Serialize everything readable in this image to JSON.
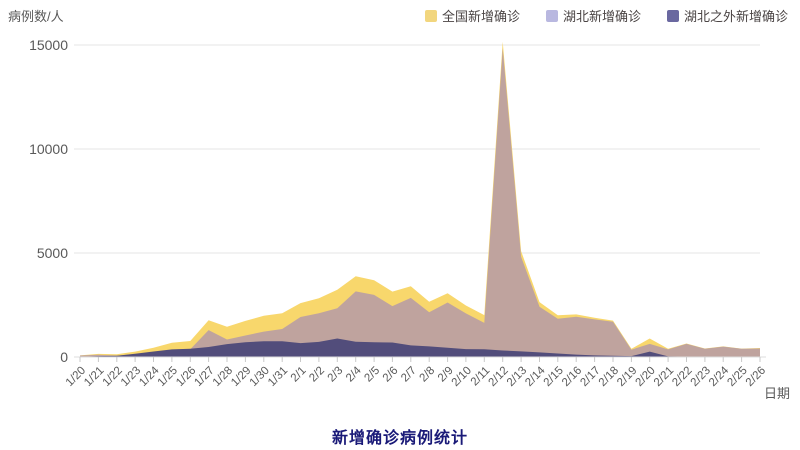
{
  "chart": {
    "title": "新增确诊病例统计",
    "y_axis_title": "病例数/人",
    "x_axis_title": "日期"
  },
  "legend": {
    "items": [
      {
        "label": "全国新增确诊",
        "color": "#f2d67e"
      },
      {
        "label": "湖北新增确诊",
        "color": "#b9b8e0"
      },
      {
        "label": "湖北之外新增确诊",
        "color": "#6a68a0"
      }
    ]
  },
  "chart_data": {
    "type": "area",
    "mode": "overlay",
    "title": "新增确诊病例统计",
    "xlabel": "日期",
    "ylabel": "病例数/人",
    "ylim": [
      0,
      15000
    ],
    "yticks": [
      0,
      5000,
      10000,
      15000
    ],
    "grid": true,
    "legend_position": "top-right",
    "x": [
      "1/20",
      "1/21",
      "1/22",
      "1/23",
      "1/24",
      "1/25",
      "1/26",
      "1/27",
      "1/28",
      "1/29",
      "1/30",
      "1/31",
      "2/1",
      "2/2",
      "2/3",
      "2/4",
      "2/5",
      "2/6",
      "2/7",
      "2/8",
      "2/9",
      "2/10",
      "2/11",
      "2/12",
      "2/13",
      "2/14",
      "2/15",
      "2/16",
      "2/17",
      "2/18",
      "2/19",
      "2/20",
      "2/21",
      "2/22",
      "2/23",
      "2/24",
      "2/25",
      "2/26"
    ],
    "series": [
      {
        "id": "national",
        "name": "全国新增确诊",
        "color": "#f8d76c",
        "legend_color": "#f2d67e",
        "values": [
          77,
          149,
          131,
          259,
          444,
          688,
          769,
          1771,
          1459,
          1737,
          1982,
          2102,
          2590,
          2829,
          3235,
          3887,
          3694,
          3143,
          3399,
          2656,
          3062,
          2478,
          2015,
          15152,
          5090,
          2641,
          2009,
          2048,
          1886,
          1749,
          394,
          889,
          397,
          648,
          409,
          508,
          406,
          433
        ]
      },
      {
        "id": "hubei",
        "name": "湖北新增确诊",
        "color": "#bfa39e",
        "legend_color": "#b9b8e0",
        "values": [
          72,
          105,
          69,
          105,
          180,
          323,
          371,
          1291,
          840,
          1032,
          1220,
          1347,
          1921,
          2103,
          2345,
          3156,
          2987,
          2447,
          2841,
          2147,
          2618,
          2097,
          1638,
          14840,
          4823,
          2420,
          1843,
          1933,
          1807,
          1693,
          349,
          631,
          366,
          630,
          398,
          499,
          401,
          409
        ]
      },
      {
        "id": "outside-hubei",
        "name": "湖北之外新增确诊",
        "color": "#524d7b",
        "legend_color": "#6a68a0",
        "values": [
          5,
          44,
          62,
          154,
          264,
          365,
          398,
          480,
          619,
          705,
          762,
          755,
          669,
          726,
          890,
          731,
          707,
          696,
          558,
          509,
          444,
          381,
          377,
          312,
          267,
          221,
          166,
          115,
          79,
          56,
          45,
          258,
          31,
          18,
          11,
          9,
          5,
          24
        ]
      }
    ]
  }
}
